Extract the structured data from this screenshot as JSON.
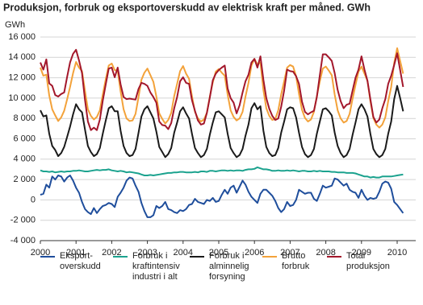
{
  "chart_data": {
    "type": "line",
    "title": "Produksjon, forbruk og eksportoverskudd av elektrisk kraft per måned. GWh",
    "y_label": "GWh",
    "categories": [
      "2000",
      null,
      null,
      null,
      null,
      null,
      null,
      null,
      null,
      null,
      null,
      null,
      "2001",
      null,
      null,
      null,
      null,
      null,
      null,
      null,
      null,
      null,
      null,
      null,
      "2002",
      null,
      null,
      null,
      null,
      null,
      null,
      null,
      null,
      null,
      null,
      null,
      "2003",
      null,
      null,
      null,
      null,
      null,
      null,
      null,
      null,
      null,
      null,
      null,
      "2004",
      null,
      null,
      null,
      null,
      null,
      null,
      null,
      null,
      null,
      null,
      null,
      "2005",
      null,
      null,
      null,
      null,
      null,
      null,
      null,
      null,
      null,
      null,
      null,
      "2006",
      null,
      null,
      null,
      null,
      null,
      null,
      null,
      null,
      null,
      null,
      null,
      "2007",
      null,
      null,
      null,
      null,
      null,
      null,
      null,
      null,
      null,
      null,
      null,
      "2008",
      null,
      null,
      null,
      null,
      null,
      null,
      null,
      null,
      null,
      null,
      null,
      "2009",
      null,
      null,
      null,
      null,
      null,
      null,
      null,
      null,
      null,
      null,
      null,
      "2010",
      null,
      null
    ],
    "ylim": [
      -4000,
      16000
    ],
    "yticks": [
      {
        "value": -4000,
        "label": "-4 000"
      },
      {
        "value": -2000,
        "label": "-2 000"
      },
      0,
      {
        "value": 2000,
        "label": "2 000"
      },
      {
        "value": 4000,
        "label": "4 000"
      },
      {
        "value": 6000,
        "label": "6 000"
      },
      {
        "value": 8000,
        "label": "8 000"
      },
      {
        "value": 10000,
        "label": "10 000"
      },
      {
        "value": 12000,
        "label": "12 000"
      },
      {
        "value": 14000,
        "label": "14 000"
      },
      {
        "value": 16000,
        "label": "16 000"
      }
    ],
    "grid": true,
    "legend": "bottom",
    "series": [
      {
        "name": "Eksport-\noverskudd",
        "color": "#1f4e9c",
        "values": [
          500,
          600,
          1500,
          1200,
          2300,
          2000,
          2400,
          2300,
          1800,
          2200,
          2400,
          1900,
          1200,
          700,
          -200,
          -900,
          -1200,
          -1400,
          -800,
          -1300,
          -900,
          -600,
          -500,
          -300,
          -400,
          -700,
          300,
          700,
          1200,
          1900,
          2200,
          2100,
          1400,
          800,
          -300,
          -1100,
          -1700,
          -1700,
          -1500,
          -600,
          -800,
          -600,
          -200,
          -900,
          -1000,
          -1200,
          -1300,
          -1000,
          -1100,
          -900,
          -500,
          -400,
          100,
          -200,
          -300,
          -400,
          0,
          -100,
          200,
          -200,
          -100,
          500,
          1000,
          600,
          1200,
          1400,
          700,
          1300,
          1900,
          1500,
          800,
          300,
          0,
          -300,
          600,
          1000,
          1000,
          700,
          400,
          -100,
          -800,
          -1200,
          -900,
          -200,
          -600,
          -500,
          0,
          1000,
          800,
          600,
          700,
          700,
          100,
          -100,
          600,
          1400,
          1200,
          1300,
          1400,
          2100,
          2000,
          1700,
          1400,
          1600,
          1000,
          800,
          700,
          200,
          1000,
          400,
          0,
          200,
          100,
          200,
          800,
          1600,
          1800,
          1700,
          1100,
          -200,
          -500,
          -900,
          -1300
        ]
      },
      {
        "name": "Forbruk i\nkraftintensiv\nindustri i alt",
        "color": "#1ba28e",
        "values": [
          2900,
          2800,
          2800,
          2750,
          2800,
          2700,
          2750,
          2800,
          2750,
          2800,
          2800,
          2850,
          2850,
          2900,
          2850,
          2800,
          2800,
          2850,
          2900,
          2950,
          2900,
          2950,
          2950,
          3000,
          2900,
          2850,
          2800,
          2850,
          2800,
          2700,
          2750,
          2700,
          2650,
          2600,
          2500,
          2400,
          2400,
          2450,
          2400,
          2450,
          2500,
          2550,
          2600,
          2650,
          2650,
          2700,
          2700,
          2750,
          2750,
          2700,
          2700,
          2700,
          2750,
          2700,
          2800,
          2800,
          2750,
          2850,
          2850,
          2800,
          2850,
          2900,
          2900,
          2850,
          2900,
          2850,
          2900,
          2900,
          2850,
          2950,
          3000,
          3000,
          3050,
          3200,
          3100,
          3000,
          3000,
          2950,
          2850,
          2850,
          2900,
          2850,
          2850,
          2900,
          2850,
          2900,
          2850,
          2800,
          2850,
          2850,
          2800,
          2800,
          2850,
          2800,
          2850,
          2800,
          2800,
          2800,
          2750,
          2750,
          2700,
          2700,
          2700,
          2650,
          2650,
          2650,
          2600,
          2500,
          2400,
          2300,
          2300,
          2200,
          2250,
          2200,
          2200,
          2300,
          2300,
          2300,
          2300,
          2350,
          2400,
          2450,
          2500
        ]
      },
      {
        "name": "Forbruk i\nalminnelig\nforsyning",
        "color": "#1a1a1a",
        "values": [
          8800,
          8200,
          8300,
          6500,
          5300,
          4900,
          4300,
          4600,
          5200,
          6200,
          7200,
          8400,
          9400,
          8900,
          8600,
          6900,
          5300,
          4700,
          4300,
          4500,
          5100,
          6500,
          7800,
          9000,
          9200,
          8700,
          8700,
          6800,
          5300,
          4600,
          4300,
          4400,
          5000,
          6600,
          8200,
          8900,
          9200,
          8600,
          8000,
          6700,
          5200,
          4700,
          4200,
          4500,
          5100,
          6600,
          7600,
          8700,
          9100,
          8500,
          8000,
          6500,
          5100,
          4600,
          4200,
          4400,
          5000,
          6400,
          7600,
          8600,
          8700,
          8400,
          8100,
          6500,
          5100,
          4600,
          4200,
          4400,
          5000,
          6300,
          7400,
          9000,
          9500,
          8900,
          9200,
          6800,
          5200,
          4600,
          4300,
          4400,
          5100,
          6600,
          7700,
          8900,
          9100,
          9000,
          8100,
          6600,
          5200,
          4500,
          4200,
          4400,
          5000,
          6500,
          7700,
          8900,
          9000,
          8700,
          8300,
          6600,
          5300,
          4600,
          4200,
          4400,
          5000,
          6400,
          7600,
          8900,
          9400,
          8900,
          8200,
          6500,
          5000,
          4500,
          4200,
          4400,
          5000,
          6500,
          7700,
          9900,
          11200,
          10000,
          8700
        ]
      },
      {
        "name": "Brutto\nforbruk",
        "color": "#f3a23a",
        "values": [
          13000,
          12200,
          12300,
          10250,
          8900,
          8300,
          7750,
          8100,
          8750,
          9900,
          11100,
          12450,
          13550,
          13000,
          12650,
          10700,
          8900,
          8250,
          7900,
          8150,
          8800,
          10350,
          11850,
          13200,
          13400,
          12750,
          12700,
          10650,
          8900,
          8000,
          7750,
          7800,
          8450,
          10100,
          11800,
          12500,
          12900,
          12250,
          11600,
          10150,
          8500,
          7950,
          7500,
          7850,
          8550,
          10200,
          11400,
          12650,
          13150,
          12400,
          11900,
          10200,
          8650,
          8000,
          7700,
          7900,
          8550,
          10150,
          11550,
          12600,
          12850,
          12500,
          12200,
          10350,
          8800,
          8150,
          7800,
          8000,
          8650,
          10150,
          11500,
          13200,
          13850,
          13300,
          13500,
          10800,
          9000,
          8250,
          7850,
          7950,
          8800,
          10350,
          11650,
          13000,
          13250,
          13100,
          12150,
          10400,
          8850,
          8050,
          7700,
          7900,
          8650,
          10200,
          11650,
          12900,
          13100,
          12700,
          12250,
          10350,
          8800,
          8000,
          7600,
          7750,
          8450,
          9950,
          11300,
          12600,
          13100,
          12400,
          11700,
          9700,
          8050,
          7400,
          7100,
          7400,
          8100,
          9700,
          11100,
          13450,
          14900,
          13650,
          12400
        ]
      },
      {
        "name": "Total\nproduksjon",
        "color": "#a3172b",
        "values": [
          13500,
          12800,
          13800,
          11450,
          11200,
          10300,
          10150,
          10400,
          10550,
          12100,
          13500,
          14350,
          14750,
          13700,
          12450,
          9800,
          7700,
          6850,
          7100,
          6850,
          7900,
          9750,
          11350,
          12900,
          13000,
          12050,
          13000,
          11350,
          10100,
          9900,
          9950,
          9900,
          9850,
          10900,
          11500,
          11400,
          11200,
          10550,
          10100,
          9550,
          7700,
          7350,
          7300,
          6950,
          7550,
          9000,
          10100,
          11650,
          12050,
          11500,
          11400,
          9800,
          8750,
          7800,
          7400,
          7500,
          8550,
          10050,
          11750,
          12400,
          12750,
          13000,
          13200,
          10950,
          10000,
          9550,
          8500,
          9300,
          10550,
          11650,
          12300,
          13500,
          13850,
          13000,
          14100,
          11800,
          10000,
          8950,
          8250,
          7850,
          8000,
          9150,
          10750,
          12800,
          12650,
          12600,
          12150,
          11400,
          9650,
          8650,
          8400,
          8600,
          8750,
          10100,
          12250,
          14300,
          14300,
          14000,
          13650,
          12450,
          10800,
          9700,
          9000,
          9350,
          9450,
          10750,
          12000,
          12800,
          14100,
          12800,
          11700,
          9900,
          8150,
          7600,
          7900,
          9000,
          9900,
          11400,
          12200,
          13250,
          14400,
          12750,
          11100
        ]
      }
    ]
  }
}
